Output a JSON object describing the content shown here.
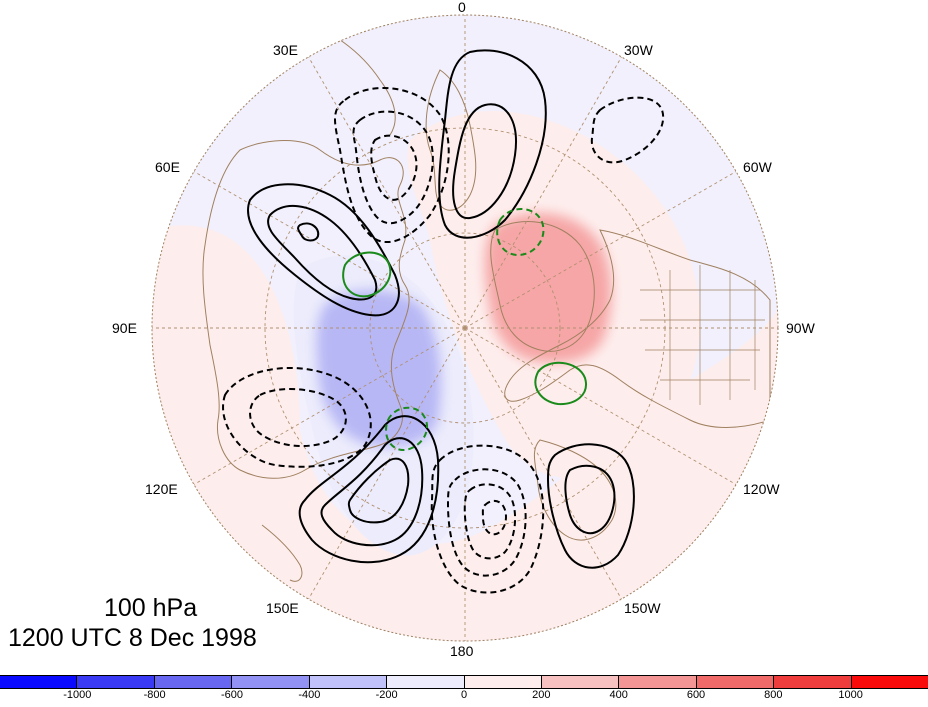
{
  "map": {
    "longitude_labels": [
      {
        "id": "lon-0",
        "text": "0"
      },
      {
        "id": "lon-30w",
        "text": "30W"
      },
      {
        "id": "lon-60w",
        "text": "60W"
      },
      {
        "id": "lon-90w",
        "text": "90W"
      },
      {
        "id": "lon-120w",
        "text": "120W"
      },
      {
        "id": "lon-150w",
        "text": "150W"
      },
      {
        "id": "lon-180",
        "text": "180"
      },
      {
        "id": "lon-150e",
        "text": "150E"
      },
      {
        "id": "lon-120e",
        "text": "120E"
      },
      {
        "id": "lon-90e",
        "text": "90E"
      },
      {
        "id": "lon-60e",
        "text": "60E"
      },
      {
        "id": "lon-30e",
        "text": "30E"
      }
    ],
    "caption": {
      "level": "100 hPa",
      "time": "1200 UTC 8 Dec 1998"
    }
  },
  "colorbar": {
    "colors": [
      "#0a0aff",
      "#3a3af5",
      "#6767f2",
      "#9292f5",
      "#c2c2fa",
      "#ececfc",
      "#fdeeed",
      "#f8c1c1",
      "#f49595",
      "#f06a6a",
      "#ef3c3c",
      "#f90b0b"
    ],
    "labels": [
      "-1000",
      "-800",
      "-600",
      "-400",
      "-200",
      "0",
      "200",
      "400",
      "600",
      "800",
      "1000"
    ]
  },
  "colors": {
    "land_outline": "#a08060",
    "graticule": "#b09070",
    "positive_contour": "#000000",
    "negative_contour": "#000000",
    "green_contour": "#1a8a1a"
  }
}
